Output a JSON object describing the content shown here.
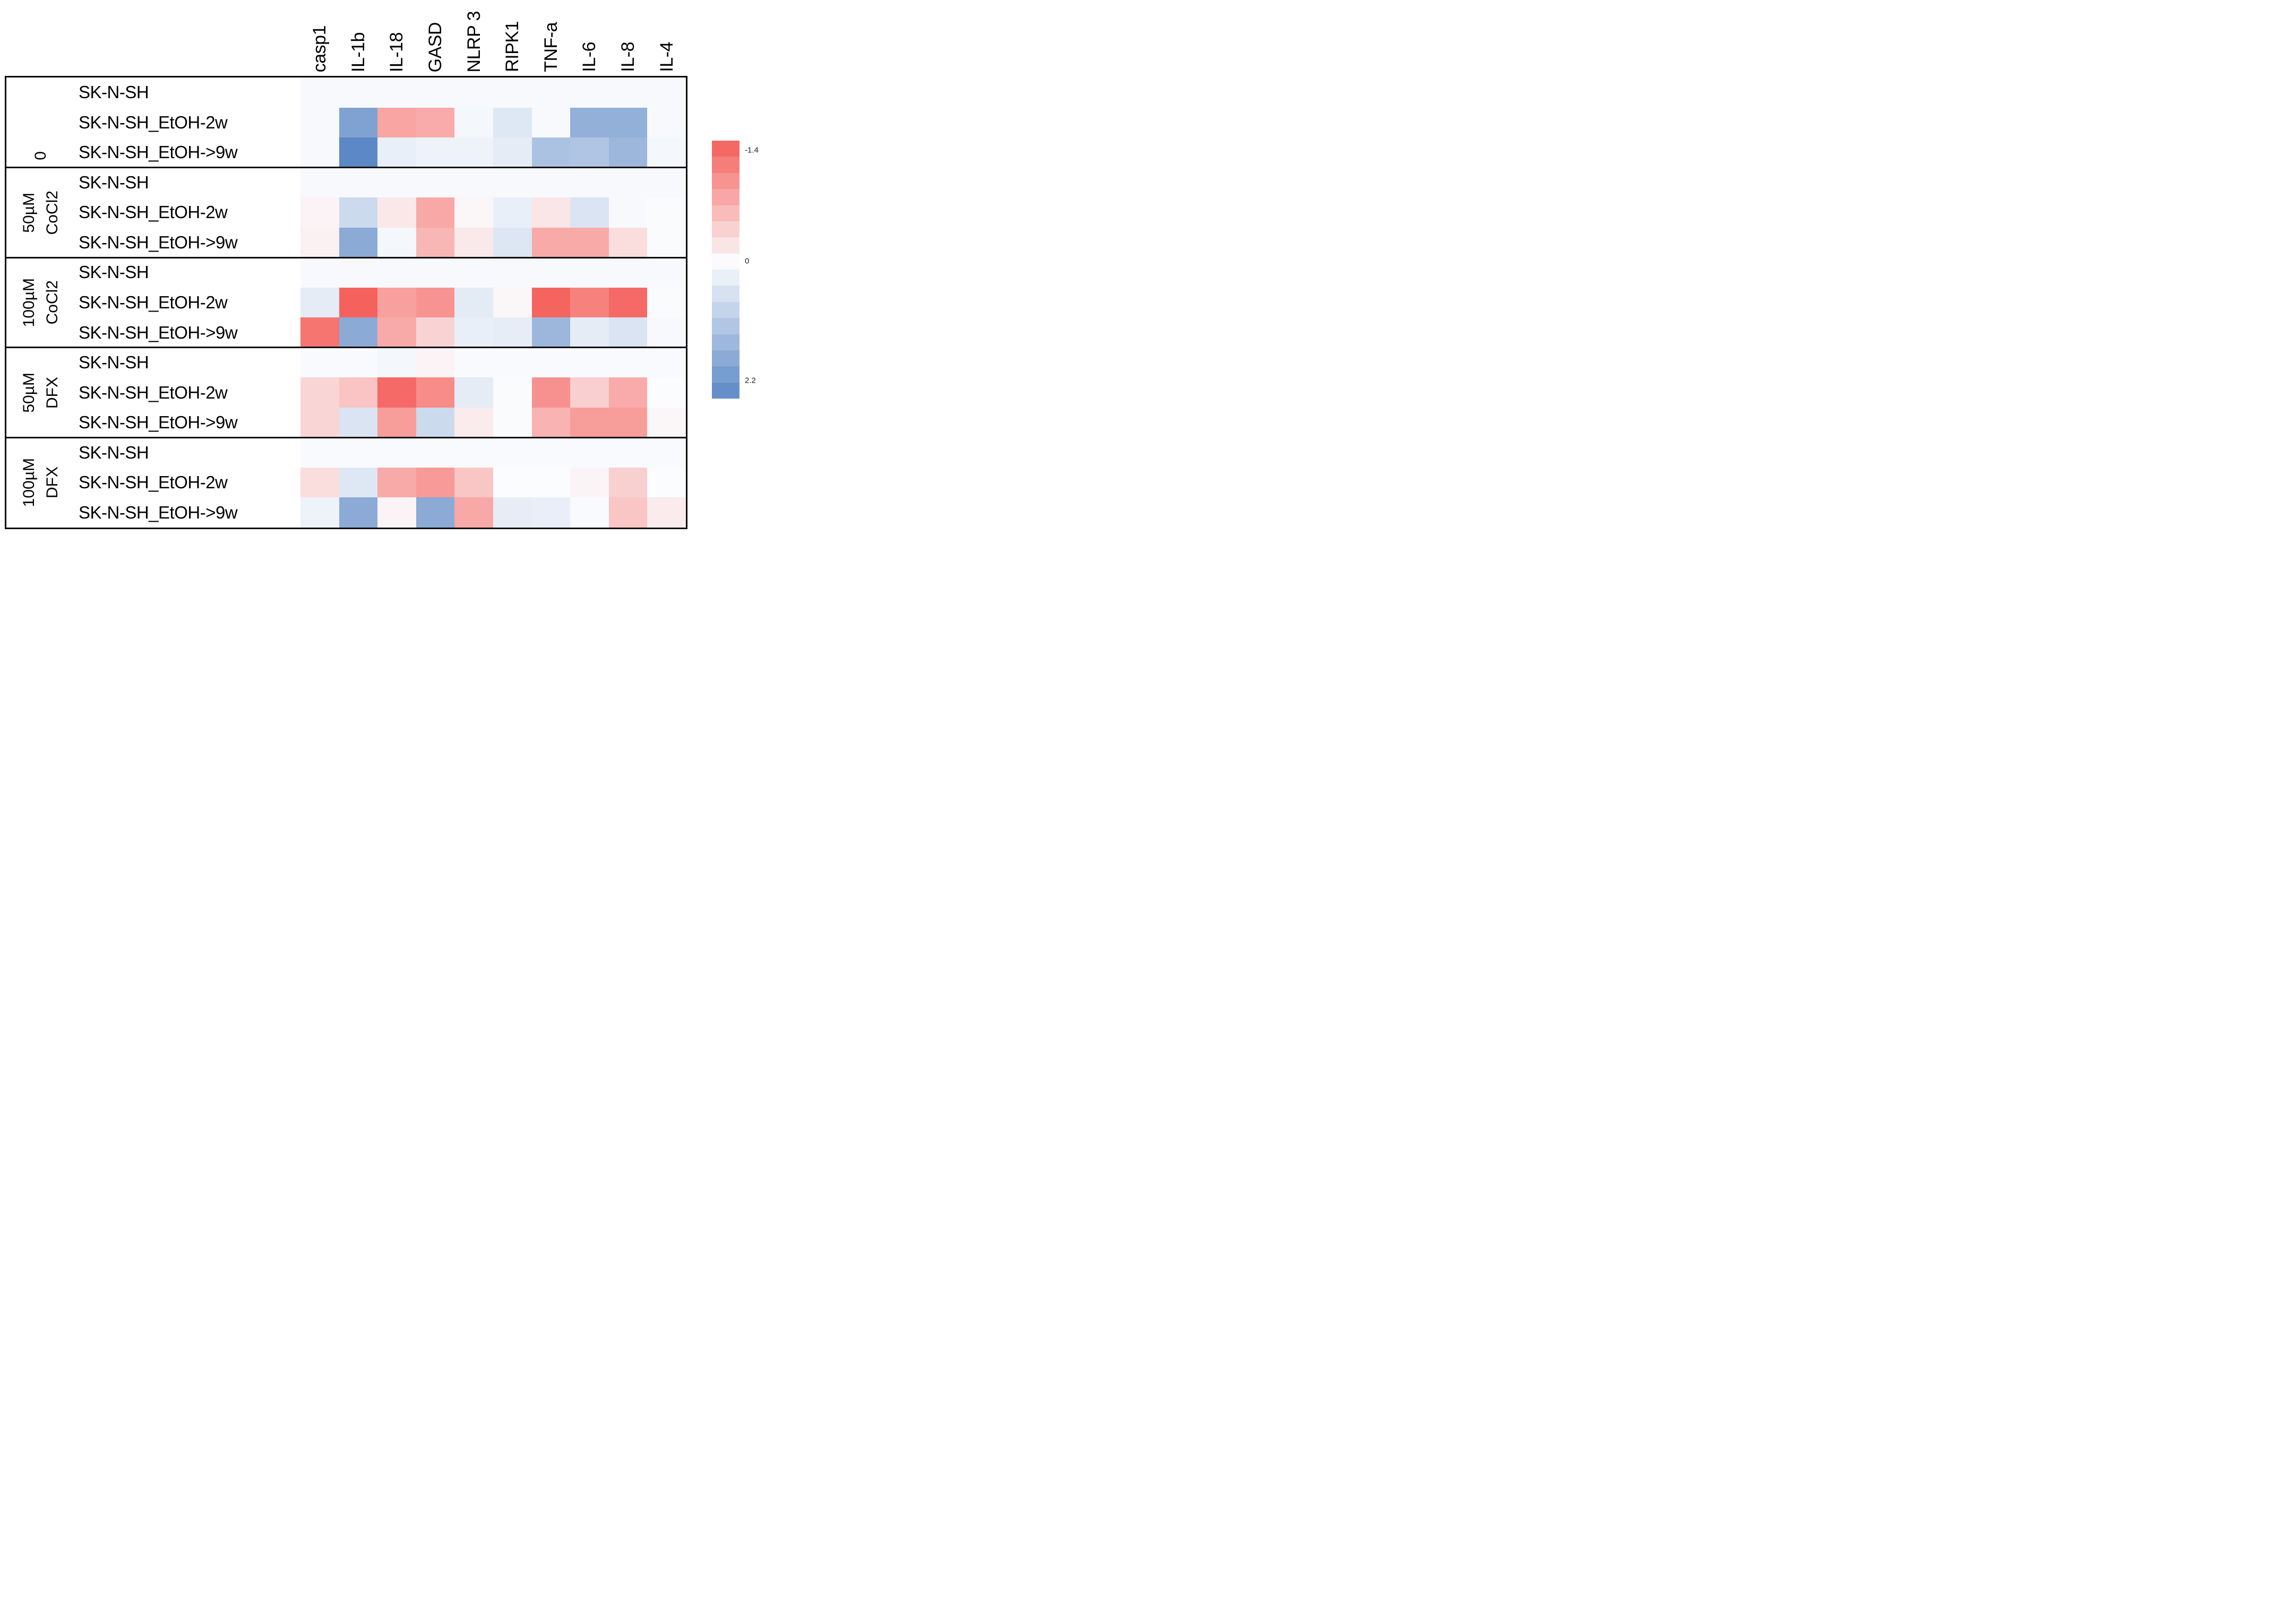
{
  "chart_data": {
    "type": "heatmap",
    "title": "",
    "xlabel": "",
    "ylabel": "",
    "grid": "off",
    "legend_position": "right",
    "columns": [
      "casp1",
      "IL-1b",
      "IL-18",
      "GASD",
      "NLRP 3",
      "RIPK1",
      "TNF-a",
      "IL-6",
      "IL-8",
      "IL-4"
    ],
    "row_groups": [
      {
        "label": "0",
        "label_lines": [
          "0"
        ],
        "rows": [
          "SK-N-SH",
          "SK-N-SH_EtOH-2w",
          "SK-N-SH_EtOH->9w"
        ]
      },
      {
        "label": "50µM CoCl2",
        "label_lines": [
          "50µM",
          "CoCl2"
        ],
        "rows": [
          "SK-N-SH",
          "SK-N-SH_EtOH-2w",
          "SK-N-SH_EtOH->9w"
        ]
      },
      {
        "label": "100µM CoCl2",
        "label_lines": [
          "100µM",
          "CoCl2"
        ],
        "rows": [
          "SK-N-SH",
          "SK-N-SH_EtOH-2w",
          "SK-N-SH_EtOH->9w"
        ]
      },
      {
        "label": "50µM DFX",
        "label_lines": [
          "50µM",
          "DFX"
        ],
        "rows": [
          "SK-N-SH",
          "SK-N-SH_EtOH-2w",
          "SK-N-SH_EtOH->9w"
        ]
      },
      {
        "label": "100µM DFX",
        "label_lines": [
          "100µM",
          "DFX"
        ],
        "rows": [
          "SK-N-SH",
          "SK-N-SH_EtOH-2w",
          "SK-N-SH_EtOH->9w"
        ]
      }
    ],
    "values": [
      [
        0.05,
        0.05,
        0.05,
        0.05,
        0.05,
        0.05,
        0.05,
        0.05,
        0.05,
        0.05
      ],
      [
        0.05,
        1.7,
        -0.78,
        -0.72,
        0.1,
        0.4,
        0.05,
        1.45,
        1.45,
        0.05
      ],
      [
        0.05,
        2.2,
        0.25,
        0.18,
        0.18,
        0.3,
        1.1,
        1.05,
        1.3,
        0.1
      ],
      [
        0.05,
        0.05,
        0.05,
        0.05,
        0.05,
        0.05,
        0.05,
        0.05,
        0.05,
        0.05
      ],
      [
        -0.08,
        0.65,
        -0.18,
        -0.75,
        -0.05,
        0.25,
        -0.2,
        0.45,
        0.05,
        0.02
      ],
      [
        -0.1,
        1.55,
        0.1,
        -0.62,
        -0.17,
        0.42,
        -0.73,
        -0.73,
        -0.27,
        0.02
      ],
      [
        0.05,
        0.05,
        0.05,
        0.05,
        0.05,
        0.05,
        0.05,
        0.05,
        0.05,
        0.05
      ],
      [
        0.3,
        -1.37,
        -0.82,
        -0.94,
        0.33,
        -0.05,
        -1.35,
        -1.09,
        -1.3,
        0.02
      ],
      [
        -1.2,
        1.55,
        -0.73,
        -0.37,
        0.25,
        0.28,
        1.3,
        0.3,
        0.45,
        0.05
      ],
      [
        0.03,
        0.03,
        0.1,
        -0.08,
        0.03,
        0.03,
        0.03,
        0.03,
        0.03,
        0.03
      ],
      [
        -0.35,
        -0.5,
        -1.3,
        -1.0,
        0.3,
        0.02,
        -0.95,
        -0.4,
        -0.72,
        0.0
      ],
      [
        -0.35,
        0.45,
        -0.85,
        0.65,
        -0.15,
        0.02,
        -0.65,
        -0.85,
        -0.85,
        -0.05
      ],
      [
        0.03,
        0.03,
        0.03,
        0.03,
        0.03,
        0.03,
        0.03,
        0.03,
        0.03,
        0.03
      ],
      [
        -0.28,
        0.4,
        -0.73,
        -0.87,
        -0.48,
        0.0,
        0.0,
        -0.07,
        -0.39,
        0.0
      ],
      [
        0.18,
        1.55,
        -0.08,
        1.55,
        -0.75,
        0.28,
        0.25,
        0.03,
        -0.49,
        -0.15
      ]
    ],
    "scale": {
      "min": -1.4,
      "max": 2.2,
      "steps": 16,
      "white_fraction": 0.475,
      "top_tick": "-1.4",
      "mid_tick": "0",
      "bottom_tick": "2.2",
      "negative_color": "#f55f5a",
      "zero_color": "#fbfcfe",
      "positive_color": "#5c88c5"
    }
  }
}
